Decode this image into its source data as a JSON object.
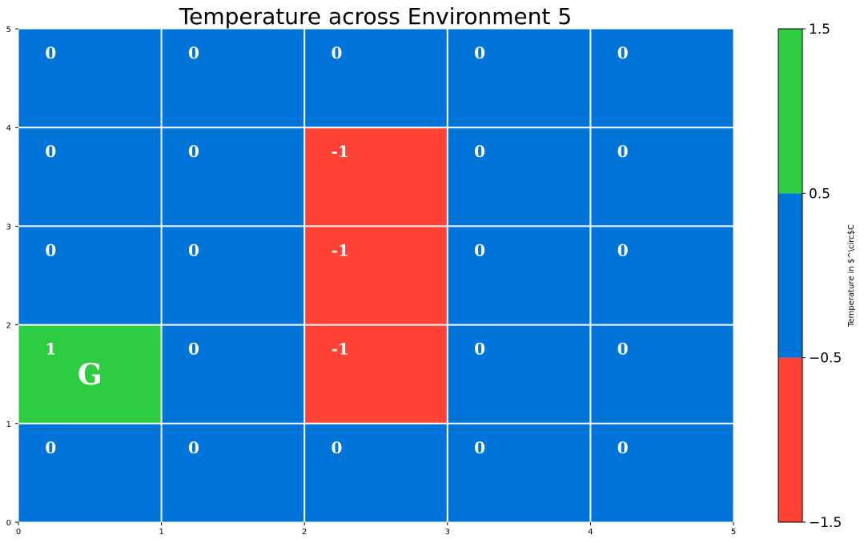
{
  "chart_data": {
    "type": "heatmap",
    "title": "Temperature across Environment 5",
    "xlim": [
      0,
      5
    ],
    "ylim": [
      0,
      5
    ],
    "x_ticks": [
      "0",
      "1",
      "2",
      "3",
      "4",
      "5"
    ],
    "y_ticks": [
      "0",
      "1",
      "2",
      "3",
      "4",
      "5"
    ],
    "grid": true,
    "rows_top_to_bottom": [
      [
        0,
        0,
        0,
        0,
        0
      ],
      [
        0,
        0,
        -1,
        0,
        0
      ],
      [
        0,
        0,
        -1,
        0,
        0
      ],
      [
        1,
        0,
        -1,
        0,
        0
      ],
      [
        0,
        0,
        0,
        0,
        0
      ]
    ],
    "cell_labels_top_to_bottom": [
      [
        "0",
        "0",
        "0",
        "0",
        "0"
      ],
      [
        "0",
        "0",
        "-1",
        "0",
        "0"
      ],
      [
        "0",
        "0",
        "-1",
        "0",
        "0"
      ],
      [
        "1",
        "0",
        "-1",
        "0",
        "0"
      ],
      [
        "0",
        "0",
        "0",
        "0",
        "0"
      ]
    ],
    "markers": [
      {
        "row": 3,
        "col": 0,
        "text": "G"
      }
    ],
    "colorbar": {
      "label": "Temperature in $^\\circ$C",
      "ticks": [
        "1.5",
        "0.5",
        "−0.5",
        "−1.5"
      ],
      "boundaries": [
        -1.5,
        -0.5,
        0.5,
        1.5
      ],
      "colors": [
        "#ff4136",
        "#0074d9",
        "#2ecc40"
      ]
    }
  }
}
